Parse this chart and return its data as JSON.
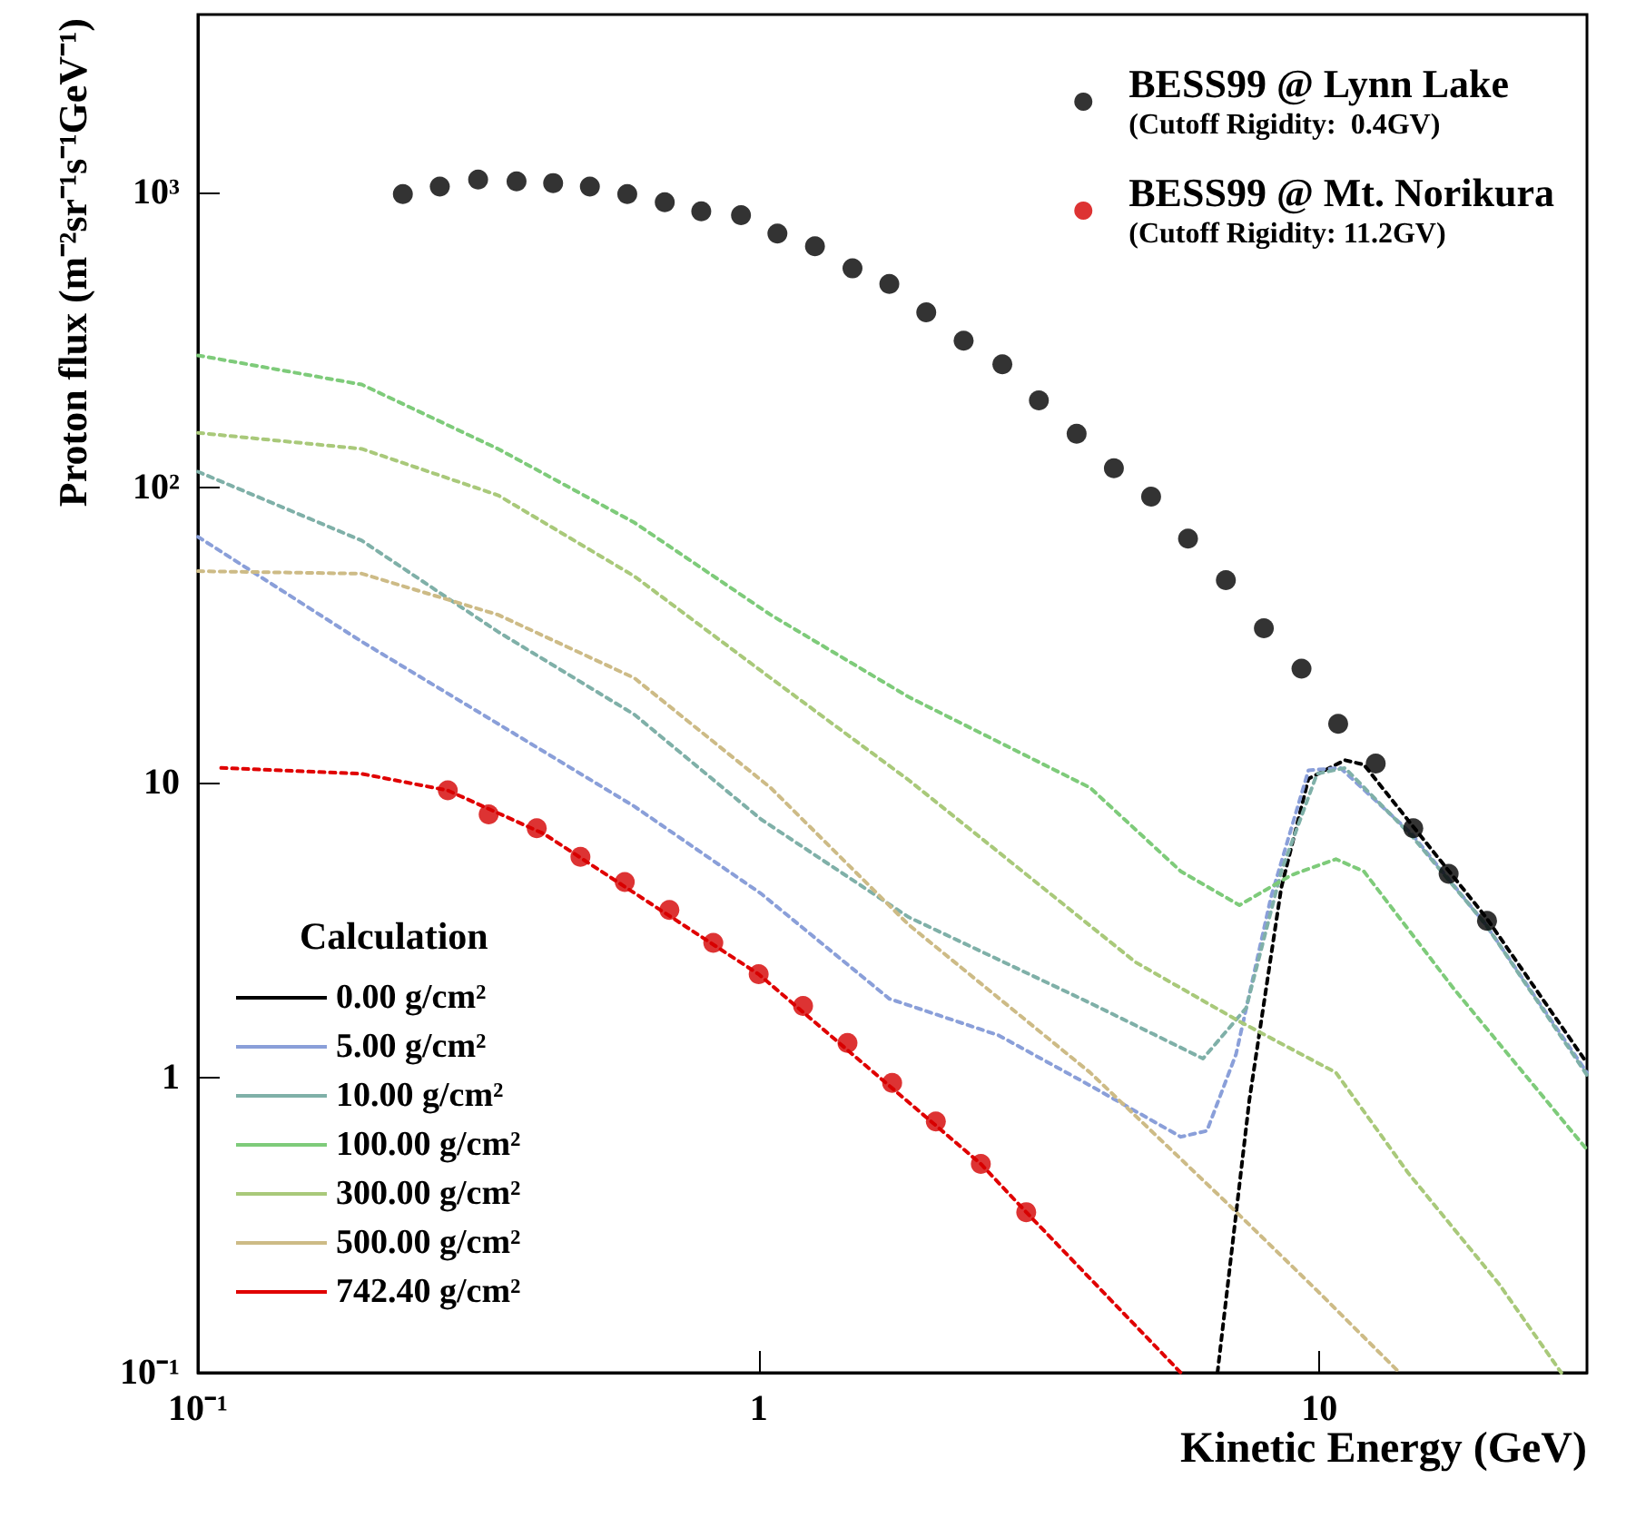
{
  "chart_data": {
    "type": "line",
    "xlabel": "Kinetic Energy (GeV)",
    "ylabel": "Proton flux (m⁻²sr⁻¹s⁻¹GeV⁻¹)",
    "legend_title": "Calculation",
    "log": "xy",
    "grid": false,
    "legend": "top right",
    "xlim": [
      0.1,
      30
    ],
    "ylim": [
      0.1,
      4000
    ],
    "xticks": [
      {
        "value": 0.1,
        "label": "10⁻¹"
      },
      1,
      10
    ],
    "yticks": [
      {
        "value": 0.1,
        "label": "10⁻¹"
      },
      1,
      10,
      {
        "value": 100,
        "label": "10²"
      },
      {
        "value": 1000,
        "label": "10³"
      }
    ],
    "series": [
      {
        "type": "scatter",
        "marker": "circle",
        "name": "BESS99 @ Lynn Lake\n(Cutoff Rigidity:  0.4GV)",
        "color": "#000000",
        "x": [
          0.232,
          0.27,
          0.316,
          0.37,
          0.43,
          0.5,
          0.583,
          0.68,
          0.79,
          0.93,
          1.08,
          1.26,
          1.47,
          1.71,
          1.99,
          2.32,
          2.72,
          3.16,
          3.69,
          4.3,
          5.01,
          5.83,
          6.81,
          7.96,
          9.29,
          10.8,
          12.6,
          14.7,
          17.0,
          19.9
        ],
        "values": [
          986,
          1045,
          1104,
          1089,
          1074,
          1045,
          986,
          925,
          861,
          836,
          724,
          656,
          552,
          489,
          392,
          314,
          261,
          197,
          152,
          116,
          93,
          67,
          48.5,
          33.3,
          24.3,
          15.8,
          11.6,
          7.0,
          4.9,
          3.4
        ]
      },
      {
        "type": "scatter",
        "marker": "circle",
        "name": "BESS99 @ Mt. Norikura\n(Cutoff Rigidity: 11.2GV)",
        "color": "#d40000",
        "x": [
          0.279,
          0.33,
          0.402,
          0.481,
          0.577,
          0.693,
          0.83,
          1.0,
          1.2,
          1.44,
          1.73,
          2.07,
          2.49,
          3.0
        ],
        "values": [
          9.4,
          7.8,
          7.0,
          5.6,
          4.6,
          3.7,
          2.86,
          2.24,
          1.75,
          1.31,
          0.96,
          0.71,
          0.51,
          0.35
        ]
      },
      {
        "type": "line",
        "line_style": "dotted",
        "name": "0.00 g/cm²",
        "color": "#000000",
        "x": [
          6.58,
          7.5,
          8.55,
          9.56,
          11.1,
          12.0,
          14.6,
          19.8,
          30
        ],
        "values": [
          0.1,
          0.84,
          4.4,
          10.3,
          11.9,
          11.5,
          7.2,
          3.5,
          1.12
        ]
      },
      {
        "type": "line",
        "line_style": "dotted",
        "name": "5.00 g/cm²",
        "color": "#8a9fd9",
        "x": [
          0.1,
          0.196,
          0.343,
          0.6,
          1.01,
          1.71,
          2.68,
          3.9,
          5.66,
          6.3,
          7.1,
          8.2,
          9.56,
          10.9,
          14.6,
          19.8,
          30
        ],
        "values": [
          68,
          30,
          15.8,
          8.3,
          4.2,
          1.85,
          1.39,
          0.94,
          0.63,
          0.66,
          1.2,
          4.1,
          11,
          11.2,
          6.7,
          3.3,
          1.04
        ]
      },
      {
        "type": "line",
        "line_style": "dotted",
        "name": "10.00 g/cm²",
        "color": "#7fb0a8",
        "x": [
          0.1,
          0.196,
          0.343,
          0.6,
          1.01,
          1.85,
          3.9,
          6.2,
          7.4,
          8.55,
          9.9,
          11.1,
          14.6,
          19.8,
          30
        ],
        "values": [
          113,
          66,
          32.4,
          17,
          7.5,
          3.5,
          1.79,
          1.16,
          1.72,
          5.0,
          10.7,
          11.2,
          6.6,
          3.3,
          1.02
        ]
      },
      {
        "type": "line",
        "line_style": "dotted",
        "name": "100.00 g/cm²",
        "color": "#7ecb7a",
        "x": [
          0.1,
          0.196,
          0.343,
          0.6,
          1.05,
          1.85,
          3.9,
          5.66,
          7.2,
          8.9,
          10.7,
          12.0,
          17.4,
          30
        ],
        "values": [
          280,
          223,
          135,
          76,
          37,
          19.5,
          9.6,
          5.0,
          3.84,
          4.85,
          5.5,
          5.0,
          1.99,
          0.57
        ]
      },
      {
        "type": "line",
        "line_style": "dotted",
        "name": "300.00 g/cm²",
        "color": "#a9c97a",
        "x": [
          0.1,
          0.196,
          0.343,
          0.6,
          1.05,
          1.85,
          2.68,
          4.7,
          7.2,
          10.7,
          14.4,
          20.9,
          27
        ],
        "values": [
          153,
          135,
          94,
          50,
          22.6,
          10.2,
          5.8,
          2.46,
          1.55,
          1.04,
          0.475,
          0.2,
          0.1
        ]
      },
      {
        "type": "line",
        "line_style": "dotted",
        "name": "500.00 g/cm²",
        "color": "#cdbb86",
        "x": [
          0.1,
          0.196,
          0.343,
          0.6,
          1.05,
          1.85,
          3.9,
          6.8,
          9.9,
          13.9
        ],
        "values": [
          52,
          51,
          37,
          22.6,
          9.6,
          3.3,
          1.04,
          0.38,
          0.19,
          0.1
        ]
      },
      {
        "type": "line",
        "line_style": "dotted",
        "name": "742.40 g/cm²",
        "color": "#e00000",
        "x": [
          0.11,
          0.196,
          0.279,
          0.414,
          1.0,
          2.49,
          3.0,
          5.66
        ],
        "values": [
          11.2,
          10.7,
          9.4,
          6.7,
          2.24,
          0.51,
          0.35,
          0.1
        ]
      }
    ]
  }
}
